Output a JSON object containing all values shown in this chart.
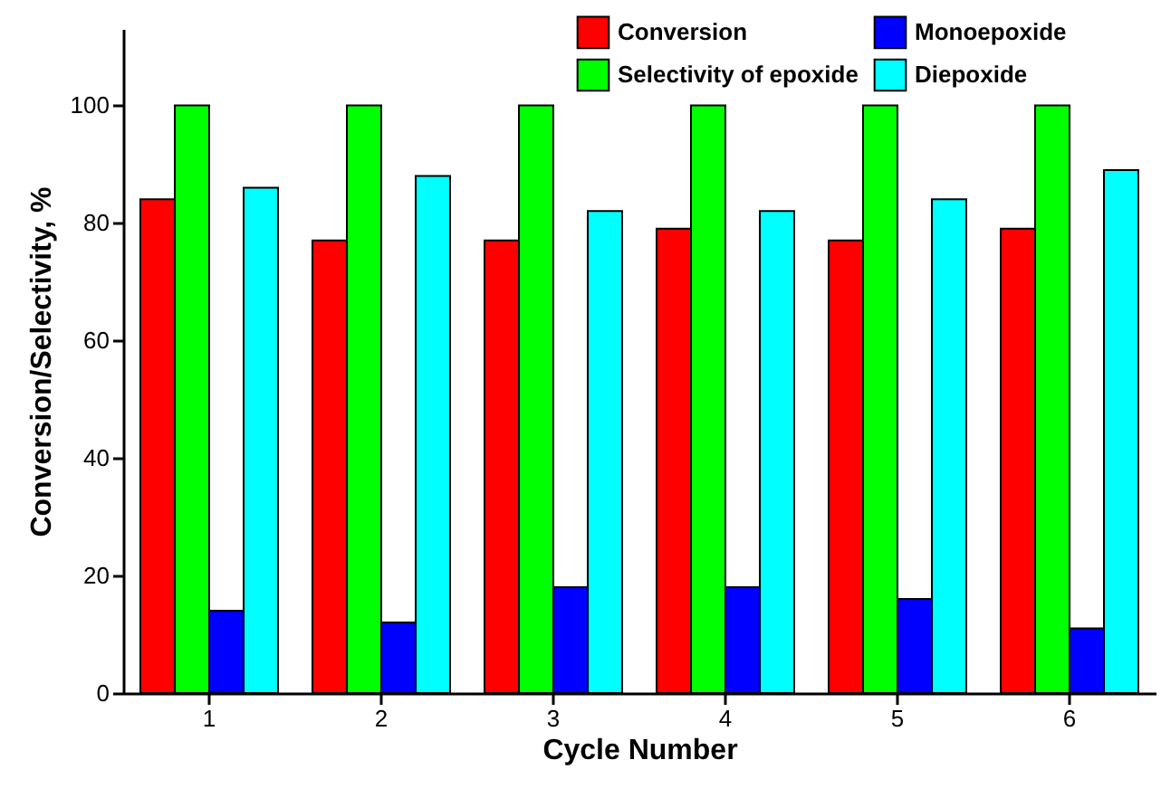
{
  "chart_data": {
    "type": "bar",
    "xlabel": "Cycle Number",
    "ylabel": "Conversion/Selectivity, %",
    "categories": [
      "1",
      "2",
      "3",
      "4",
      "5",
      "6"
    ],
    "series": [
      {
        "name": "Conversion",
        "color": "#ff0000",
        "values": [
          84,
          77,
          77,
          79,
          77,
          79
        ]
      },
      {
        "name": "Selectivity of epoxide",
        "color": "#00ff00",
        "values": [
          100,
          100,
          100,
          100,
          100,
          100
        ]
      },
      {
        "name": "Monoepoxide",
        "color": "#0000ff",
        "values": [
          14,
          12,
          18,
          18,
          16,
          11
        ]
      },
      {
        "name": "Diepoxide",
        "color": "#00ffff",
        "values": [
          86,
          88,
          82,
          82,
          84,
          89
        ]
      }
    ],
    "ylim": [
      0,
      113
    ],
    "yticks": [
      0,
      20,
      40,
      60,
      80,
      100
    ],
    "grid": false,
    "legend": "top"
  }
}
